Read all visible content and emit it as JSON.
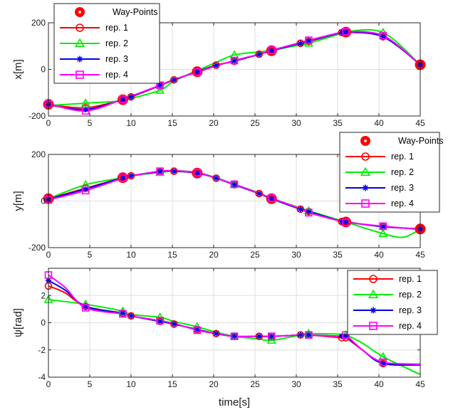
{
  "chart_data": [
    {
      "type": "line",
      "ylabel": "x[m]",
      "xlabel": "",
      "xlim": [
        0,
        45
      ],
      "ylim": [
        -200,
        200
      ],
      "xticks": [
        "0",
        "5",
        "10",
        "15",
        "20",
        "25",
        "30",
        "35",
        "40",
        "45"
      ],
      "yticks": [
        "-200",
        "0",
        "200"
      ],
      "legend_position": "top-left",
      "waypoints": {
        "name": "Way-Points",
        "x": [
          0,
          9,
          18,
          27,
          36,
          45
        ],
        "y": [
          -150,
          -130,
          -10,
          80,
          160,
          20
        ]
      },
      "series": [
        {
          "name": "rep. 1",
          "color": "#ff0000",
          "marker": "circle",
          "x": [
            0,
            4.5,
            9,
            10,
            13.5,
            15.2,
            18,
            20.3,
            22.5,
            25.5,
            27,
            30.5,
            31.5,
            35.5,
            36,
            40.5,
            45
          ],
          "y": [
            -150,
            -165,
            -130,
            -118,
            -70,
            -45,
            -10,
            18,
            35,
            65,
            80,
            112,
            120,
            158,
            160,
            140,
            20
          ],
          "markers_at": [
            0,
            4.5,
            9,
            10,
            13.5,
            15.2,
            18,
            20.3,
            22.5,
            25.5,
            27,
            30.5,
            31.5,
            35.5,
            36,
            40.5,
            45
          ]
        },
        {
          "name": "rep. 2",
          "color": "#00ee00",
          "marker": "triangle",
          "x": [
            0,
            4.5,
            9,
            10,
            13.5,
            15.2,
            18,
            20.3,
            22.5,
            25.5,
            27,
            30.5,
            31.5,
            35.5,
            36,
            40.5,
            45
          ],
          "y": [
            -155,
            -145,
            -135,
            -125,
            -90,
            -50,
            -5,
            30,
            62,
            75,
            82,
            105,
            112,
            155,
            162,
            158,
            20
          ],
          "markers_at": [
            4.5,
            13.5,
            22.5,
            31.5,
            40.5
          ]
        },
        {
          "name": "rep. 3",
          "color": "#0000ee",
          "marker": "star",
          "x": [
            0,
            4.5,
            9,
            10,
            13.5,
            15.2,
            18,
            20.3,
            22.5,
            25.5,
            27,
            30.5,
            31.5,
            35.5,
            36,
            40.5,
            45
          ],
          "y": [
            -152,
            -172,
            -130,
            -118,
            -68,
            -45,
            -10,
            17,
            36,
            64,
            80,
            112,
            122,
            158,
            160,
            140,
            20
          ],
          "markers_at": [
            0,
            4.5,
            9,
            10,
            13.5,
            15.2,
            18,
            20.3,
            22.5,
            25.5,
            27,
            30.5,
            31.5,
            35.5,
            36,
            40.5,
            45
          ]
        },
        {
          "name": "rep. 4",
          "color": "#ff00ff",
          "marker": "square",
          "x": [
            0,
            4.5,
            9,
            10,
            13.5,
            15.2,
            18,
            20.3,
            22.5,
            25.5,
            27,
            30.5,
            31.5,
            35.5,
            36,
            40.5,
            45
          ],
          "y": [
            -148,
            -178,
            -128,
            -115,
            -68,
            -43,
            -12,
            15,
            38,
            65,
            82,
            115,
            125,
            160,
            162,
            145,
            20
          ],
          "markers_at": [
            0,
            4.5,
            9,
            13.5,
            18,
            22.5,
            27,
            31.5,
            36,
            40.5
          ]
        }
      ]
    },
    {
      "type": "line",
      "ylabel": "y[m]",
      "xlabel": "",
      "xlim": [
        0,
        45
      ],
      "ylim": [
        -200,
        200
      ],
      "xticks": [
        "0",
        "5",
        "10",
        "15",
        "20",
        "25",
        "30",
        "35",
        "40",
        "45"
      ],
      "yticks": [
        "-200",
        "0",
        "200"
      ],
      "legend_position": "top-right",
      "waypoints": {
        "name": "Way-Points",
        "x": [
          0,
          9,
          18,
          27,
          36,
          45
        ],
        "y": [
          10,
          100,
          120,
          10,
          -90,
          -120
        ]
      },
      "series": [
        {
          "name": "rep. 1",
          "color": "#ff0000",
          "marker": "circle",
          "x": [
            0,
            4.5,
            9,
            10,
            13.5,
            15.2,
            18,
            20.3,
            22.5,
            25.5,
            27,
            30.5,
            31.5,
            35.5,
            36,
            40.5,
            45
          ],
          "y": [
            10,
            55,
            100,
            108,
            125,
            128,
            120,
            98,
            70,
            32,
            10,
            -35,
            -45,
            -88,
            -90,
            -110,
            -120
          ],
          "markers_at": [
            0,
            4.5,
            9,
            10,
            13.5,
            15.2,
            18,
            20.3,
            22.5,
            25.5,
            27,
            30.5,
            31.5,
            35.5,
            36,
            40.5,
            45
          ]
        },
        {
          "name": "rep. 2",
          "color": "#00ee00",
          "marker": "triangle",
          "x": [
            0,
            4.5,
            9,
            10,
            13.5,
            15.2,
            18,
            20.3,
            22.5,
            25.5,
            27,
            30.5,
            31.5,
            35.5,
            36,
            40.5,
            43,
            45
          ],
          "y": [
            10,
            70,
            100,
            110,
            122,
            130,
            122,
            100,
            72,
            35,
            12,
            -30,
            -42,
            -85,
            -90,
            -140,
            -155,
            -120
          ],
          "markers_at": [
            4.5,
            13.5,
            22.5,
            31.5,
            40.5
          ]
        },
        {
          "name": "rep. 3",
          "color": "#0000ee",
          "marker": "star",
          "x": [
            0,
            4.5,
            9,
            10,
            13.5,
            15.2,
            18,
            20.3,
            22.5,
            25.5,
            27,
            30.5,
            31.5,
            35.5,
            36,
            40.5,
            45
          ],
          "y": [
            8,
            52,
            100,
            108,
            126,
            128,
            120,
            98,
            70,
            32,
            10,
            -35,
            -45,
            -88,
            -90,
            -110,
            -120
          ],
          "markers_at": [
            0,
            4.5,
            9,
            10,
            13.5,
            15.2,
            18,
            20.3,
            22.5,
            25.5,
            27,
            30.5,
            31.5,
            35.5,
            36,
            40.5,
            45
          ]
        },
        {
          "name": "rep. 4",
          "color": "#ff00ff",
          "marker": "square",
          "x": [
            0,
            4.5,
            9,
            10,
            13.5,
            15.2,
            18,
            20.3,
            22.5,
            25.5,
            27,
            30.5,
            31.5,
            35.5,
            36,
            40.5,
            45
          ],
          "y": [
            5,
            45,
            98,
            108,
            128,
            130,
            122,
            98,
            72,
            33,
            12,
            -33,
            -50,
            -88,
            -92,
            -108,
            -122
          ],
          "markers_at": [
            0,
            4.5,
            9,
            13.5,
            18,
            22.5,
            27,
            31.5,
            36,
            40.5
          ]
        }
      ]
    },
    {
      "type": "line",
      "ylabel": "ψ[rad]",
      "xlabel": "time[s]",
      "xlim": [
        0,
        45
      ],
      "ylim": [
        -4,
        4
      ],
      "xticks": [
        "0",
        "5",
        "10",
        "15",
        "20",
        "25",
        "30",
        "35",
        "40",
        "45"
      ],
      "yticks": [
        "-4",
        "-2",
        "0",
        "2"
      ],
      "legend_position": "top-right",
      "series": [
        {
          "name": "rep. 1",
          "color": "#ff0000",
          "marker": "circle",
          "x": [
            0,
            2,
            4.5,
            9,
            10,
            13.5,
            15.2,
            18,
            20.3,
            22.5,
            25.5,
            27,
            30.5,
            31.5,
            35.5,
            36,
            38,
            40.5,
            45
          ],
          "y": [
            2.7,
            2.2,
            1.2,
            0.7,
            0.5,
            0.1,
            -0.1,
            -0.5,
            -0.8,
            -1.0,
            -1.0,
            -1.0,
            -0.9,
            -0.9,
            -1.1,
            -1.1,
            -2.0,
            -3.0,
            -3.1
          ],
          "markers_at": [
            0,
            4.5,
            9,
            10,
            13.5,
            15.2,
            18,
            20.3,
            22.5,
            25.5,
            27,
            30.5,
            31.5,
            35.5,
            36,
            40.5
          ]
        },
        {
          "name": "rep. 2",
          "color": "#00ee00",
          "marker": "triangle",
          "x": [
            0,
            4.5,
            9,
            10,
            13.5,
            15.2,
            18,
            20.3,
            22.5,
            25.5,
            27,
            30.5,
            31.5,
            35.5,
            36,
            38,
            40.5,
            45
          ],
          "y": [
            1.7,
            1.35,
            0.85,
            0.6,
            0.4,
            0.1,
            -0.3,
            -0.7,
            -1.0,
            -1.2,
            -1.3,
            -0.9,
            -0.8,
            -0.85,
            -0.9,
            -1.5,
            -2.5,
            -3.8
          ],
          "markers_at": [
            0,
            4.5,
            9,
            13.5,
            18,
            22.5,
            27,
            31.5,
            36,
            40.5
          ]
        },
        {
          "name": "rep. 3",
          "color": "#0000ee",
          "marker": "star",
          "x": [
            0,
            2,
            4.5,
            9,
            10,
            13.5,
            15.2,
            18,
            20.3,
            22.5,
            25.5,
            27,
            30.5,
            31.5,
            35.5,
            36,
            38,
            40.5,
            45
          ],
          "y": [
            3.1,
            2.4,
            1.2,
            0.7,
            0.5,
            0.1,
            -0.1,
            -0.5,
            -0.8,
            -1.0,
            -1.0,
            -1.0,
            -0.9,
            -0.9,
            -1.0,
            -1.0,
            -2.0,
            -3.0,
            -3.1
          ],
          "markers_at": [
            0,
            4.5,
            9,
            10,
            13.5,
            15.2,
            18,
            20.3,
            22.5,
            25.5,
            27,
            30.5,
            31.5,
            35.5,
            36,
            40.5
          ]
        },
        {
          "name": "rep. 4",
          "color": "#ff00ff",
          "marker": "square",
          "x": [
            0,
            2,
            4.5,
            9,
            10,
            13.5,
            15.2,
            18,
            20.3,
            22.5,
            25.5,
            27,
            30.5,
            31.5,
            35.5,
            36,
            38,
            40.5,
            45
          ],
          "y": [
            3.5,
            2.6,
            1.1,
            0.65,
            0.5,
            0.15,
            -0.05,
            -0.55,
            -0.8,
            -1.0,
            -1.0,
            -1.0,
            -0.9,
            -0.9,
            -1.0,
            -0.9,
            -2.0,
            -2.9,
            -3.05
          ],
          "markers_at": [
            0,
            4.5,
            9,
            13.5,
            18,
            22.5,
            27,
            31.5,
            36,
            40.5
          ]
        }
      ]
    }
  ]
}
